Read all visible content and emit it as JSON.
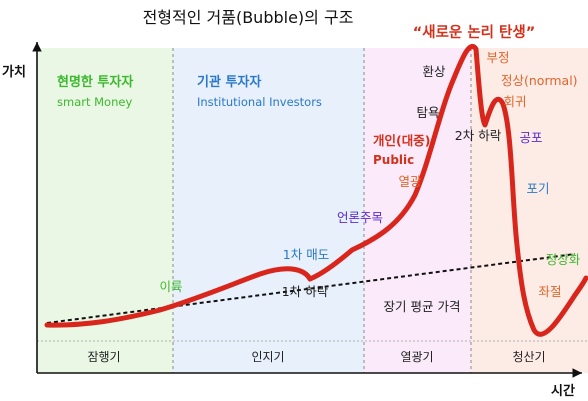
{
  "title": "전형적인 거품(Bubble)의 구조",
  "axes": {
    "y_label": "가치",
    "x_label": "시간"
  },
  "phases": [
    {
      "name": "잠행기",
      "color": "#e9f7e4"
    },
    {
      "name": "인지기",
      "color": "#e8f0fb"
    },
    {
      "name": "열광기",
      "color": "#fbeafa"
    },
    {
      "name": "청산기",
      "color": "#fdece6"
    }
  ],
  "groups": {
    "smart": {
      "kr": "현명한 투자자",
      "en": "smart Money",
      "color": "#3db82e"
    },
    "institutional": {
      "kr": "기관 투자자",
      "en": "Institutional Investors",
      "color": "#2a79c9"
    },
    "public": {
      "kr": "개인(대중)",
      "en": "Public",
      "color": "#d4311c"
    }
  },
  "annotations": {
    "profit": "이륙",
    "first_sell": "1차 매도",
    "first_drop": "1차 하락",
    "media": "언론주목",
    "greed": "탐욕",
    "frenzy": "열광",
    "euphoria": "환상",
    "new_paradigm": "“새로운 논리 탄생”",
    "second_drop": "2차 하락",
    "denial": "부정",
    "normal": "정상(normal)",
    "return": "회귀",
    "fear": "공포",
    "capitulation": "포기",
    "despair": "좌절",
    "normalize": "정상화",
    "long_term_mean": "장기 평균 가격"
  },
  "colors": {
    "curve": "#d9261c",
    "mean_line": "#111111",
    "axis": "#111111",
    "green": "#3db82e",
    "blue": "#2a79c9",
    "purple": "#5a2bd1",
    "orange": "#e0652a",
    "dark": "#222222",
    "red": "#d4311c"
  }
}
